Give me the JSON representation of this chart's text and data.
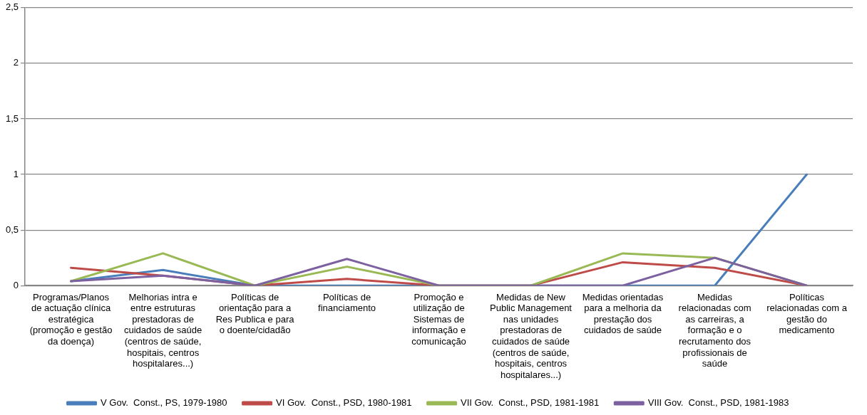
{
  "chart_data": {
    "type": "line",
    "categories": [
      "Programas/Planos de actuação clínica estratégica (promoção e gestão da doença)",
      "Melhorias intra e entre estruturas prestadoras de cuidados de saúde (centros de saúde, hospitais, centros hospitalares...)",
      "Políticas de orientação para a Res Publica e para o doente/cidadão",
      "Políticas de financiamento",
      "Promoção e utilização de Sistemas de informação e comunicação",
      "Medidas de New Public Management nas unidades prestadoras de cuidados de saúde (centros de saúde, hospitais, centros hospitalares...)",
      "Medidas orientadas para a melhoria da prestação dos cuidados de saúde",
      "Medidas relacionadas com as carreiras, a formação e o recrutamento dos profissionais de saúde",
      "Políticas relacionadas com a gestão do medicamento"
    ],
    "series": [
      {
        "name": "V Gov.  Const., PS, 1979-1980",
        "color": "#4a7ebb",
        "values": [
          0.04,
          0.14,
          0,
          0,
          0,
          0,
          0,
          0,
          1
        ]
      },
      {
        "name": "VI Gov.  Const., PSD, 1980-1981",
        "color": "#be4b48",
        "values": [
          0.16,
          0.09,
          0,
          0.06,
          0,
          0,
          0.21,
          0.16,
          0
        ]
      },
      {
        "name": "VII Gov.  Const., PSD, 1981-1981",
        "color": "#98b954",
        "values": [
          0.04,
          0.29,
          0,
          0.17,
          0,
          0,
          0.29,
          0.25,
          0
        ]
      },
      {
        "name": "VIII Gov.  Const., PSD, 1981-1983",
        "color": "#7d60a0",
        "values": [
          0.04,
          0.09,
          0,
          0.24,
          0,
          0,
          0,
          0.25,
          0
        ]
      }
    ],
    "ylim": [
      0,
      2.5
    ],
    "yticks": [
      {
        "value": 0,
        "label": "0"
      },
      {
        "value": 0.5,
        "label": "0,5"
      },
      {
        "value": 1,
        "label": "1"
      },
      {
        "value": 1.5,
        "label": "1,5"
      },
      {
        "value": 2,
        "label": "2"
      },
      {
        "value": 2.5,
        "label": "2,5"
      }
    ],
    "grid": "y",
    "legend": "bottom",
    "marker": "none",
    "line_style": "solid"
  }
}
